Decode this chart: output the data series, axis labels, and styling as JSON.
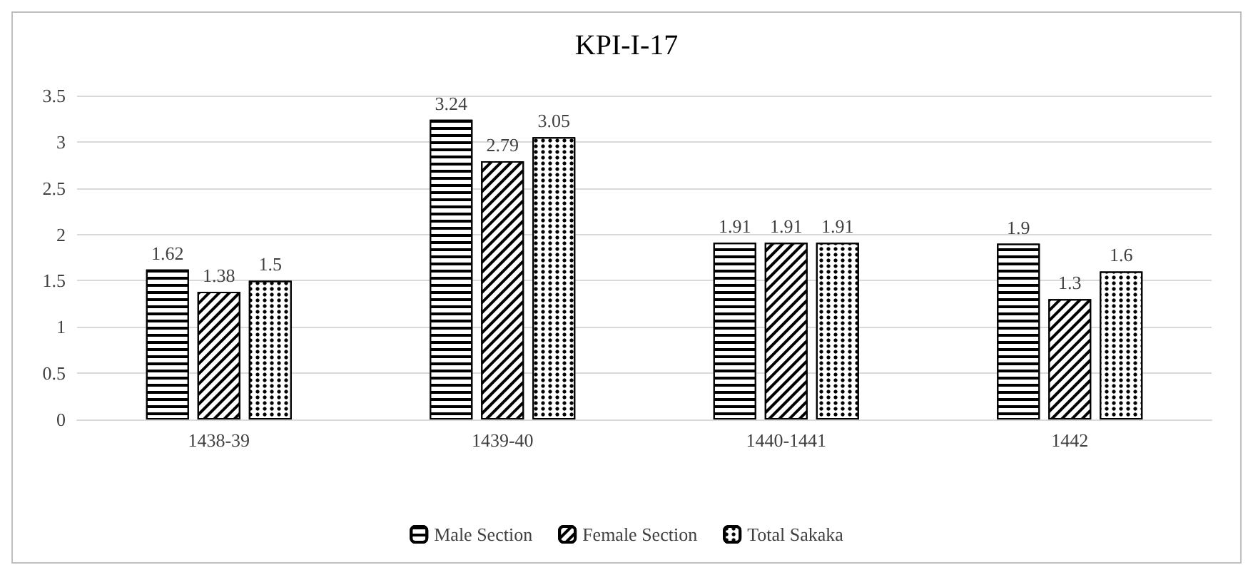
{
  "chart_data": {
    "type": "bar",
    "title": "KPI-I-17",
    "categories": [
      "1438-39",
      "1439-40",
      "1440-1441",
      "1442"
    ],
    "series": [
      {
        "name": "Male Section",
        "color": "#000000",
        "values": [
          1.62,
          3.24,
          1.91,
          1.9
        ]
      },
      {
        "name": "Female Section",
        "color": "#000000",
        "values": [
          1.38,
          2.79,
          1.91,
          1.3
        ]
      },
      {
        "name": "Total Sakaka",
        "color": "#000000",
        "values": [
          1.5,
          3.05,
          1.91,
          1.6
        ]
      }
    ],
    "ylim": [
      0,
      3.5
    ],
    "yticks": [
      0,
      0.5,
      1,
      1.5,
      2,
      2.5,
      3,
      3.5
    ],
    "grid": "y",
    "legend": "bottom",
    "data_labels": true
  }
}
